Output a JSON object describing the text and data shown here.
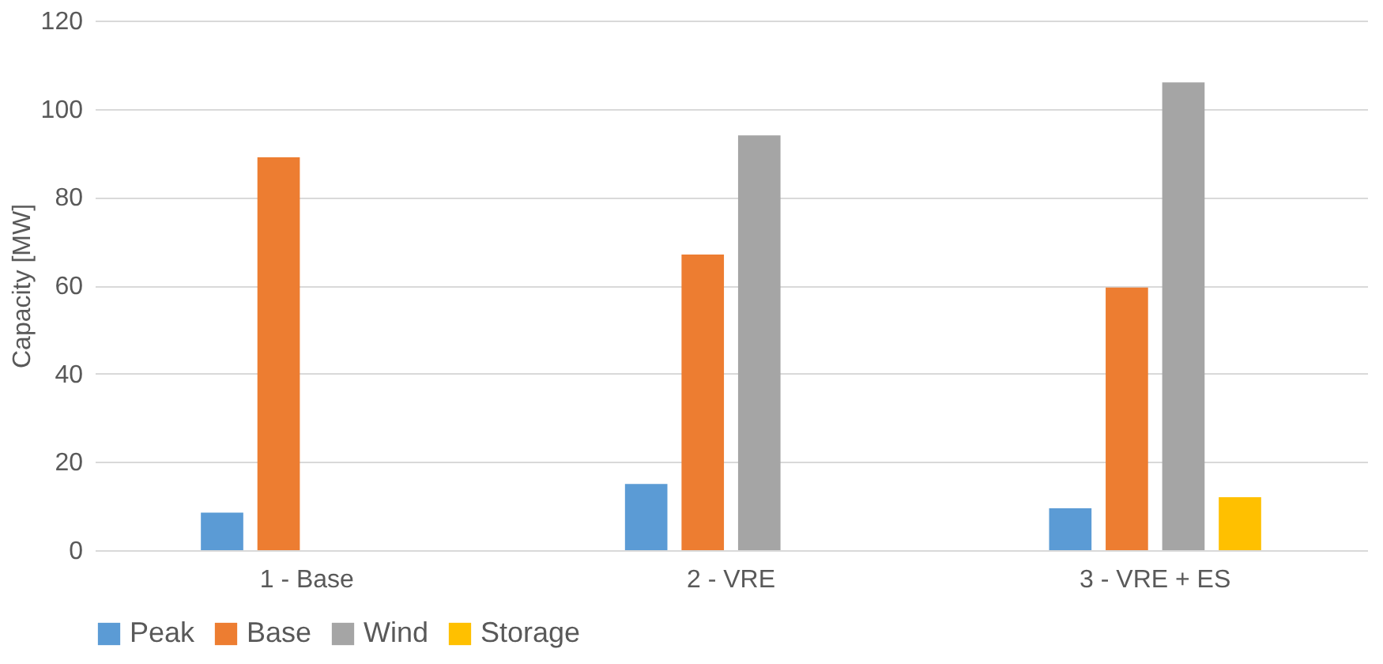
{
  "chart_data": {
    "type": "bar",
    "ylabel": "Capacity [MW]",
    "categories": [
      "1 - Base",
      "2 - VRE",
      "3 - VRE + ES"
    ],
    "series": [
      {
        "name": "Peak",
        "color": "#5b9bd5",
        "values": [
          8.5,
          15,
          9.5
        ]
      },
      {
        "name": "Base",
        "color": "#ed7d31",
        "values": [
          89,
          67,
          59.5
        ]
      },
      {
        "name": "Wind",
        "color": "#a5a5a5",
        "values": [
          null,
          94,
          106
        ]
      },
      {
        "name": "Storage",
        "color": "#ffc000",
        "values": [
          null,
          null,
          12
        ]
      }
    ],
    "ylim": [
      0,
      120
    ],
    "yticks": [
      0,
      20,
      40,
      60,
      80,
      100,
      120
    ],
    "grid": "y",
    "legend": "bottom"
  }
}
